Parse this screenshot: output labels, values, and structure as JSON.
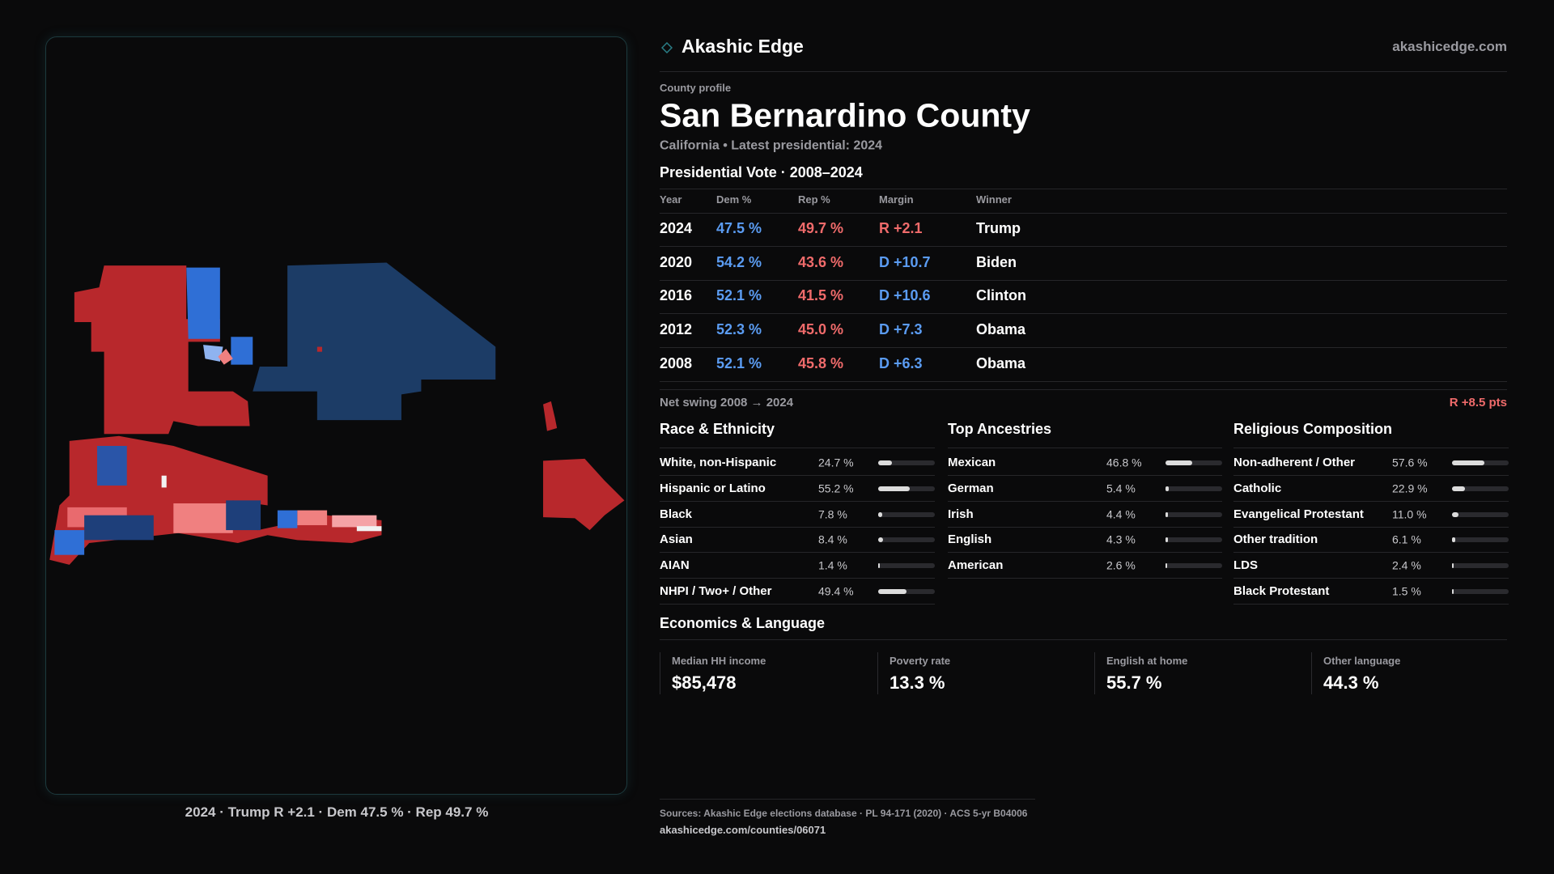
{
  "header": {
    "brand": "Akashic Edge",
    "url": "akashicedge.com"
  },
  "map": {
    "caption": "2024 · Trump R +2.1 · Dem 47.5 % · Rep 49.7 %"
  },
  "profile": {
    "kicker": "County profile",
    "title": "San Bernardino County",
    "subtitle": "California • Latest presidential: 2024"
  },
  "vote": {
    "heading": "Presidential Vote · 2008–2024",
    "columns": [
      "Year",
      "Dem %",
      "Rep %",
      "Margin",
      "Winner"
    ],
    "rows": [
      [
        "2024",
        "47.5 %",
        "49.7 %",
        "R +2.1",
        "Trump"
      ],
      [
        "2020",
        "54.2 %",
        "43.6 %",
        "D +10.7",
        "Biden"
      ],
      [
        "2016",
        "52.1 %",
        "41.5 %",
        "D +10.6",
        "Clinton"
      ],
      [
        "2012",
        "52.3 %",
        "45.0 %",
        "D +7.3",
        "Obama"
      ],
      [
        "2008",
        "52.1 %",
        "45.8 %",
        "D +6.3",
        "Obama"
      ]
    ],
    "swing_label": "Net swing 2008 → 2024",
    "swing_value": "R +8.5 pts"
  },
  "demographics": [
    {
      "heading": "Race & Ethnicity",
      "rows": [
        {
          "label": "White, non-Hispanic",
          "value": 24.7,
          "value_label": "24.7 %"
        },
        {
          "label": "Hispanic or Latino",
          "value": 55.2,
          "value_label": "55.2 %"
        },
        {
          "label": "Black",
          "value": 7.8,
          "value_label": "7.8 %"
        },
        {
          "label": "Asian",
          "value": 8.4,
          "value_label": "8.4 %"
        },
        {
          "label": "AIAN",
          "value": 1.4,
          "value_label": "1.4 %"
        },
        {
          "label": "NHPI / Two+ / Other",
          "value": 49.4,
          "value_label": "49.4 %"
        }
      ]
    },
    {
      "heading": "Top Ancestries",
      "rows": [
        {
          "label": "Mexican",
          "value": 46.8,
          "value_label": "46.8 %"
        },
        {
          "label": "German",
          "value": 5.4,
          "value_label": "5.4 %"
        },
        {
          "label": "Irish",
          "value": 4.4,
          "value_label": "4.4 %"
        },
        {
          "label": "English",
          "value": 4.3,
          "value_label": "4.3 %"
        },
        {
          "label": "American",
          "value": 2.6,
          "value_label": "2.6 %"
        }
      ]
    },
    {
      "heading": "Religious Composition",
      "rows": [
        {
          "label": "Non-adherent / Other",
          "value": 57.6,
          "value_label": "57.6 %"
        },
        {
          "label": "Catholic",
          "value": 22.9,
          "value_label": "22.9 %"
        },
        {
          "label": "Evangelical Protestant",
          "value": 11.0,
          "value_label": "11.0 %"
        },
        {
          "label": "Other tradition",
          "value": 6.1,
          "value_label": "6.1 %"
        },
        {
          "label": "LDS",
          "value": 2.4,
          "value_label": "2.4 %"
        },
        {
          "label": "Black Protestant",
          "value": 1.5,
          "value_label": "1.5 %"
        }
      ]
    }
  ],
  "economics": {
    "heading": "Economics & Language",
    "stats": [
      {
        "label": "Median HH income",
        "value": "$85,478"
      },
      {
        "label": "Poverty rate",
        "value": "13.3 %"
      },
      {
        "label": "English at home",
        "value": "55.7 %"
      },
      {
        "label": "Other language",
        "value": "44.3 %"
      }
    ]
  },
  "sources": {
    "text": "Sources: Akashic Edge elections database · PL 94-171 (2020) · ACS 5-yr B04006",
    "link": "akashicedge.com/counties/06071"
  }
}
